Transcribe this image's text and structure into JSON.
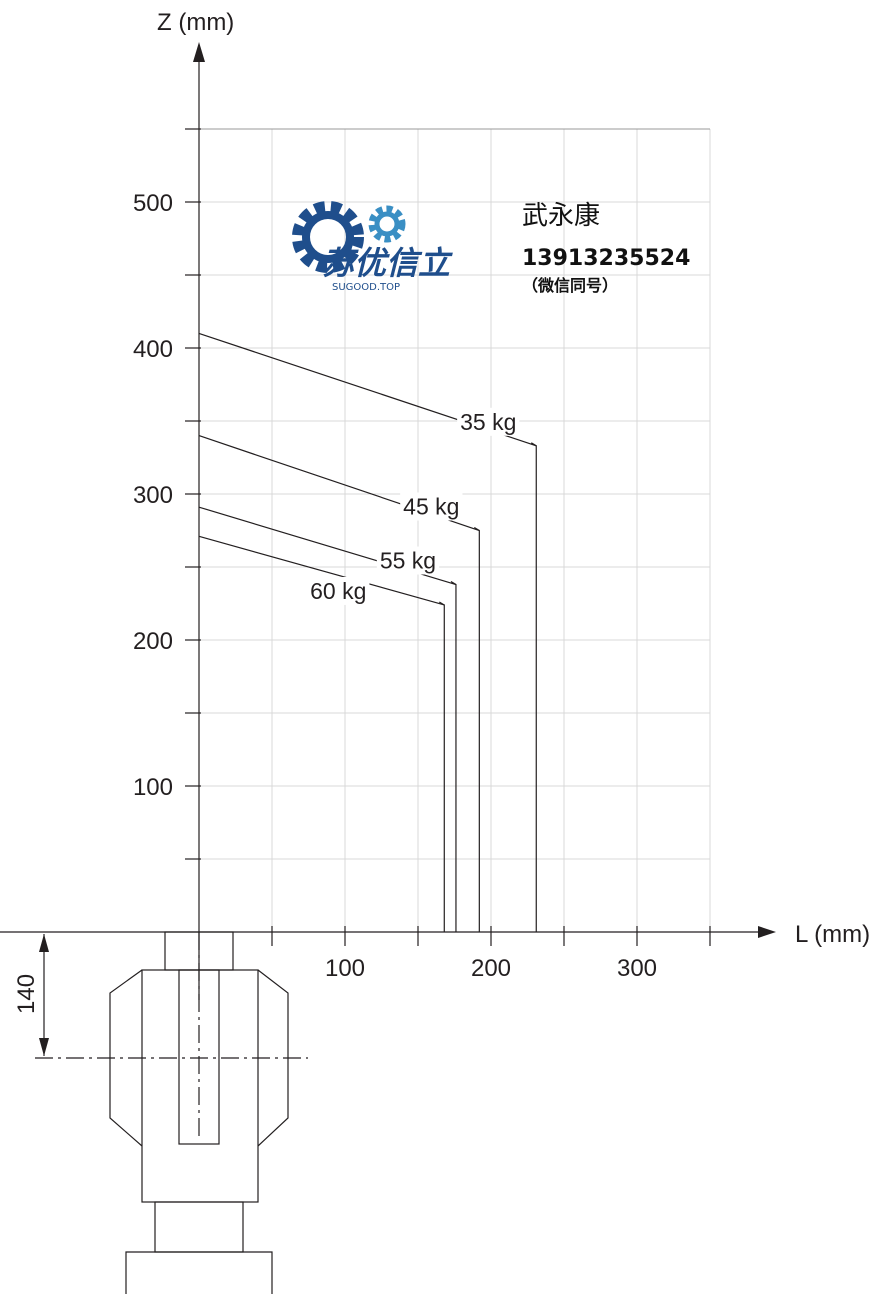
{
  "chart_data": {
    "type": "line",
    "xlabel": "L (mm)",
    "ylabel": "Z (mm)",
    "xlim": [
      0,
      350
    ],
    "ylim": [
      0,
      550
    ],
    "x_ticks": [
      100,
      200,
      300
    ],
    "y_ticks": [
      100,
      200,
      300,
      400,
      500
    ],
    "grid": true,
    "series": [
      {
        "name": "35 kg",
        "points": [
          [
            0,
            410
          ],
          [
            231,
            333
          ],
          [
            231,
            0
          ]
        ]
      },
      {
        "name": "45 kg",
        "points": [
          [
            0,
            340
          ],
          [
            192,
            275
          ],
          [
            192,
            0
          ]
        ]
      },
      {
        "name": "55 kg",
        "points": [
          [
            0,
            291
          ],
          [
            176,
            238
          ],
          [
            176,
            0
          ]
        ]
      },
      {
        "name": "60 kg",
        "points": [
          [
            0,
            271
          ],
          [
            168,
            224
          ],
          [
            168,
            0
          ]
        ]
      }
    ]
  },
  "dimension": {
    "label": "140"
  },
  "watermark": {
    "brand": "苏优信立",
    "site": "SUGOOD.TOP",
    "contact_name": "武永康",
    "phone": "13913235524",
    "note": "（微信同号）",
    "colors": {
      "gear_dark": "#1f4e8c",
      "gear_light": "#3a8fc4"
    }
  }
}
